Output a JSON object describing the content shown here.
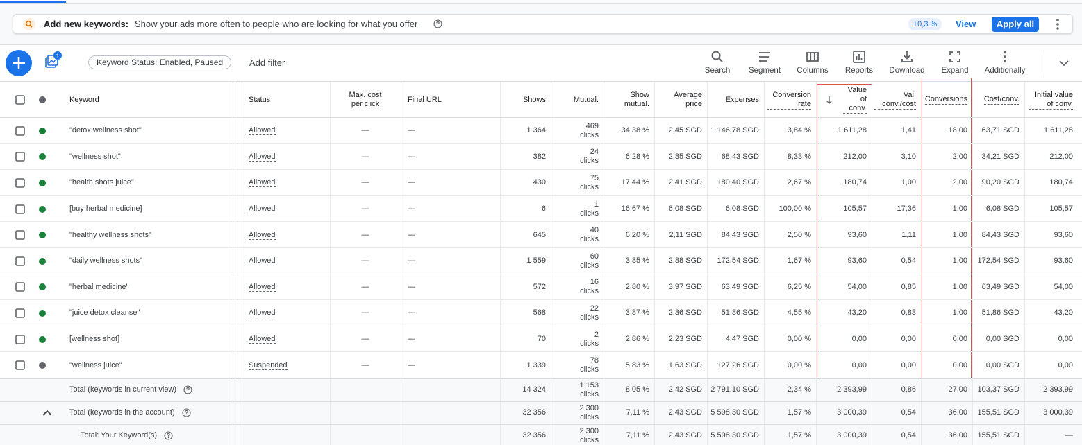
{
  "banner": {
    "title": "Add new keywords:",
    "text": "Show your ads more often to people who are looking for what you offer",
    "badge": "+0,3 %",
    "view": "View",
    "apply": "Apply all"
  },
  "toolbar": {
    "notification_count": "1",
    "filter_chip": "Keyword Status: Enabled, Paused",
    "add_filter": "Add filter",
    "tools": [
      "Search",
      "Segment",
      "Columns",
      "Reports",
      "Download",
      "Expand",
      "Additionally"
    ]
  },
  "table": {
    "columns": [
      "Keyword",
      "Status",
      "Max. cost per click",
      "Final URL",
      "Shows",
      "Mutual.",
      "Show mutual.",
      "Average price",
      "Expenses",
      "Conversion rate",
      "Value of conv.",
      "Val. conv./cost",
      "Conversions",
      "Cost/conv.",
      "Initial value of conv."
    ],
    "rows": [
      {
        "keyword": "\"detox wellness shot\"",
        "status": "Allowed",
        "color": "#188038",
        "cells": [
          "—",
          "—",
          "1 364",
          "469 clicks",
          "34,38 %",
          "2,45 SGD",
          "1 146,78 SGD",
          "3,84 %",
          "1 611,28",
          "1,41",
          "18,00",
          "63,71 SGD",
          "1 611,28"
        ]
      },
      {
        "keyword": "\"wellness shot\"",
        "status": "Allowed",
        "color": "#188038",
        "cells": [
          "—",
          "—",
          "382",
          "24 clicks",
          "6,28 %",
          "2,85 SGD",
          "68,43 SGD",
          "8,33 %",
          "212,00",
          "3,10",
          "2,00",
          "34,21 SGD",
          "212,00"
        ]
      },
      {
        "keyword": "\"health shots juice\"",
        "status": "Allowed",
        "color": "#188038",
        "cells": [
          "—",
          "—",
          "430",
          "75 clicks",
          "17,44 %",
          "2,41 SGD",
          "180,40 SGD",
          "2,67 %",
          "180,74",
          "1,00",
          "2,00",
          "90,20 SGD",
          "180,74"
        ]
      },
      {
        "keyword": "[buy herbal medicine]",
        "status": "Allowed",
        "color": "#188038",
        "cells": [
          "—",
          "—",
          "6",
          "1 clicks",
          "16,67 %",
          "6,08 SGD",
          "6,08 SGD",
          "100,00 %",
          "105,57",
          "17,36",
          "1,00",
          "6,08 SGD",
          "105,57"
        ]
      },
      {
        "keyword": "\"healthy wellness shots\"",
        "status": "Allowed",
        "color": "#188038",
        "cells": [
          "—",
          "—",
          "645",
          "40 clicks",
          "6,20 %",
          "2,11 SGD",
          "84,43 SGD",
          "2,50 %",
          "93,60",
          "1,11",
          "1,00",
          "84,43 SGD",
          "93,60"
        ]
      },
      {
        "keyword": "\"daily wellness shots\"",
        "status": "Allowed",
        "color": "#188038",
        "cells": [
          "—",
          "—",
          "1 559",
          "60 clicks",
          "3,85 %",
          "2,88 SGD",
          "172,54 SGD",
          "1,67 %",
          "93,60",
          "0,54",
          "1,00",
          "172,54 SGD",
          "93,60"
        ]
      },
      {
        "keyword": "\"herbal medicine\"",
        "status": "Allowed",
        "color": "#188038",
        "cells": [
          "—",
          "—",
          "572",
          "16 clicks",
          "2,80 %",
          "3,97 SGD",
          "63,49 SGD",
          "6,25 %",
          "54,00",
          "0,85",
          "1,00",
          "63,49 SGD",
          "54,00"
        ]
      },
      {
        "keyword": "\"juice detox cleanse\"",
        "status": "Allowed",
        "color": "#188038",
        "cells": [
          "—",
          "—",
          "568",
          "22 clicks",
          "3,87 %",
          "2,36 SGD",
          "51,86 SGD",
          "4,55 %",
          "43,20",
          "0,83",
          "1,00",
          "51,86 SGD",
          "43,20"
        ]
      },
      {
        "keyword": "[wellness shot]",
        "status": "Allowed",
        "color": "#188038",
        "cells": [
          "—",
          "—",
          "70",
          "2 clicks",
          "2,86 %",
          "2,23 SGD",
          "4,47 SGD",
          "0,00 %",
          "0,00",
          "0,00",
          "0,00",
          "0,00 SGD",
          "0,00"
        ]
      },
      {
        "keyword": "\"wellness juice\"",
        "status": "Suspended",
        "color": "#5f6368",
        "cells": [
          "—",
          "—",
          "1 339",
          "78 clicks",
          "5,83 %",
          "1,63 SGD",
          "127,26 SGD",
          "0,00 %",
          "0,00",
          "0,00",
          "0,00",
          "0,00 SGD",
          "0,00"
        ]
      }
    ],
    "totals": [
      {
        "label": "Total (keywords in current view)",
        "cells": [
          "14 324",
          "1 153 clicks",
          "8,05 %",
          "2,42 SGD",
          "2 791,10 SGD",
          "2,34 %",
          "2 393,99",
          "0,86",
          "27,00",
          "103,37 SGD",
          "2 393,99"
        ]
      },
      {
        "label": "Total (keywords in the account)",
        "cells": [
          "32 356",
          "2 300 clicks",
          "7,11 %",
          "2,43 SGD",
          "5 598,30 SGD",
          "1,57 %",
          "3 000,39",
          "0,54",
          "36,00",
          "155,51 SGD",
          "3 000,39"
        ]
      },
      {
        "label": "Total: Your Keyword(s)",
        "cells": [
          "32 356",
          "2 300 clicks",
          "7,11 %",
          "2,43 SGD",
          "5 598,30 SGD",
          "1,57 %",
          "3 000,39",
          "0,54",
          "36,00",
          "155,51 SGD",
          "—"
        ]
      }
    ]
  }
}
